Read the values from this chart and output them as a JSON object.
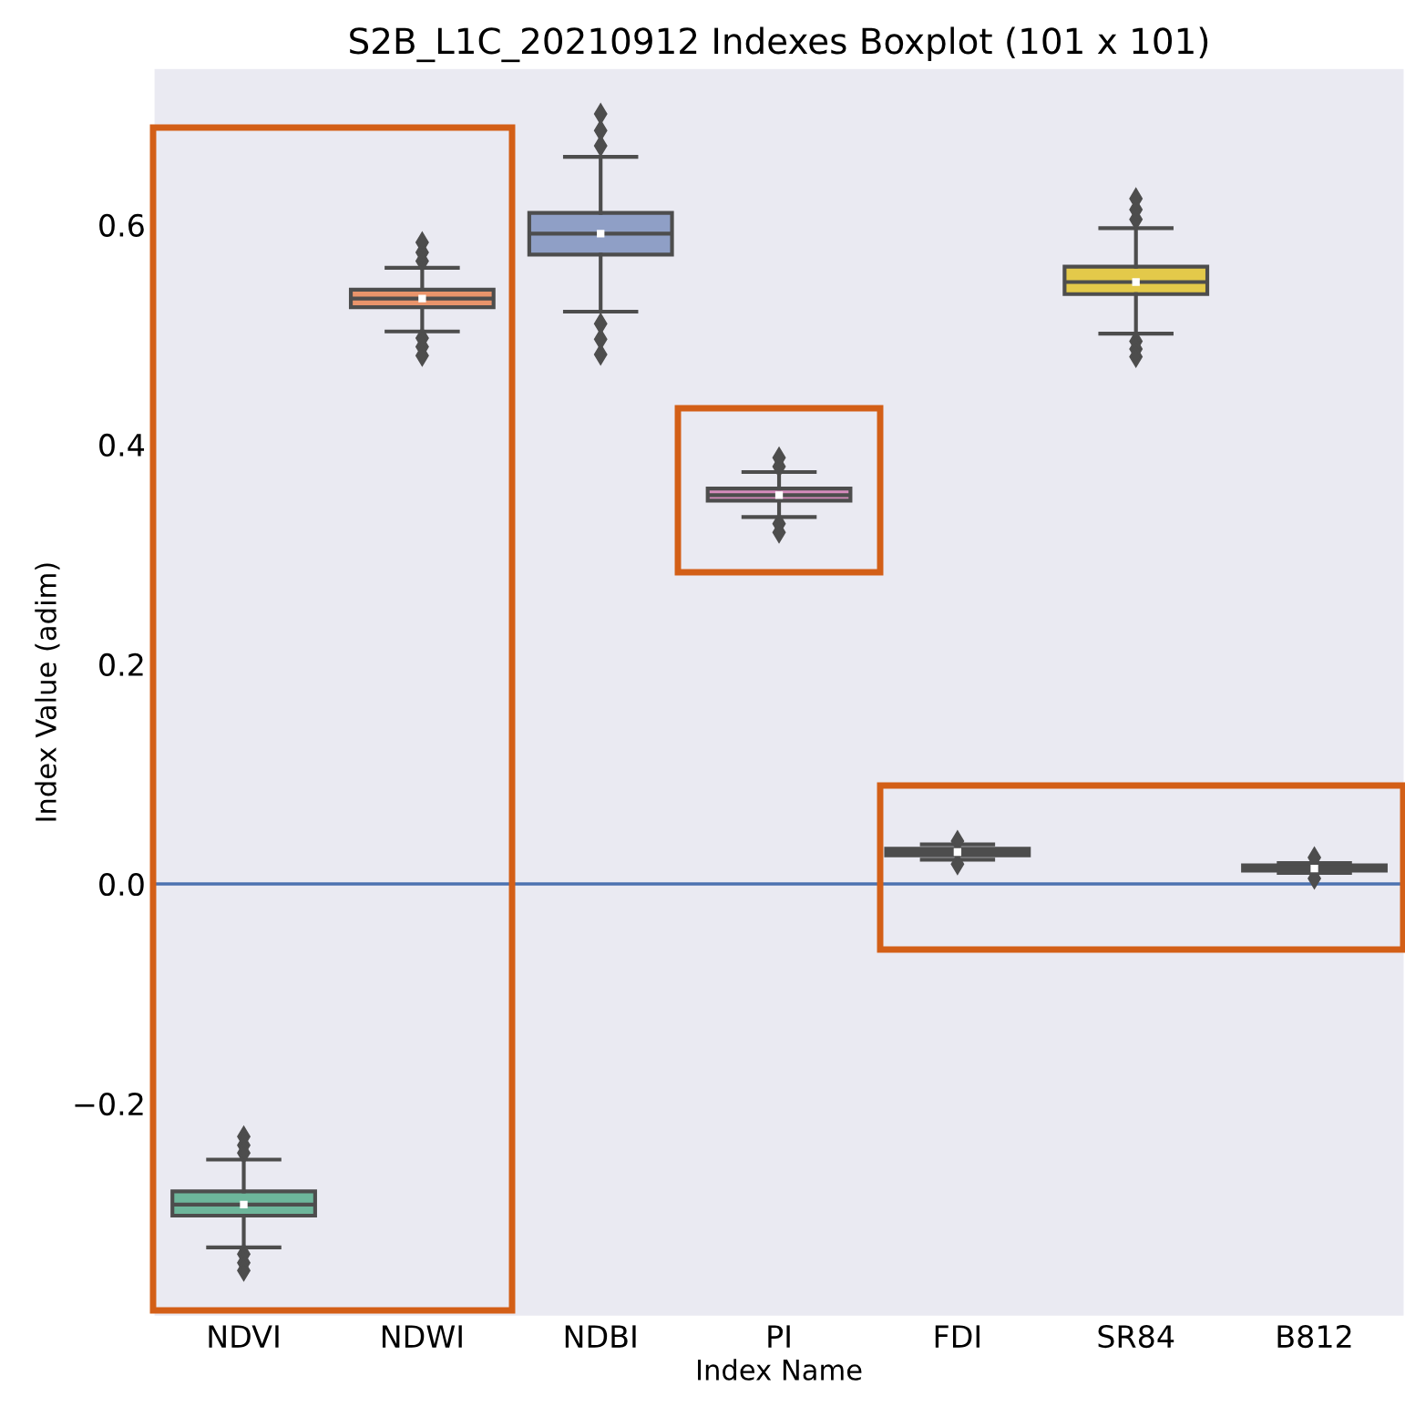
{
  "chart_data": {
    "type": "box",
    "title": "S2B_L1C_20210912 Indexes Boxplot (101 x 101)",
    "xlabel": "Index Name",
    "ylabel": "Index Value (adim)",
    "categories": [
      "NDVI",
      "NDWI",
      "NDBI",
      "PI",
      "FDI",
      "SR84",
      "B812"
    ],
    "colors": [
      "#6db69b",
      "#e9946b",
      "#8f9fc6",
      "#d68cbc",
      "#a7c865",
      "#e3c94a",
      "#d7c39d"
    ],
    "boxes": [
      {
        "low": -0.331,
        "q1": -0.302,
        "median": -0.292,
        "q3": -0.28,
        "high": -0.251,
        "mean": -0.292,
        "outliers": [
          -0.23,
          -0.238,
          -0.245,
          -0.337,
          -0.345,
          -0.352
        ]
      },
      {
        "low": 0.503,
        "q1": 0.525,
        "median": 0.533,
        "q3": 0.541,
        "high": 0.561,
        "mean": 0.533,
        "outliers": [
          0.567,
          0.575,
          0.584,
          0.497,
          0.489,
          0.481
        ]
      },
      {
        "low": 0.521,
        "q1": 0.573,
        "median": 0.592,
        "q3": 0.611,
        "high": 0.662,
        "mean": 0.592,
        "outliers": [
          0.672,
          0.686,
          0.701,
          0.51,
          0.496,
          0.482
        ]
      },
      {
        "low": 0.334,
        "q1": 0.349,
        "median": 0.354,
        "q3": 0.36,
        "high": 0.375,
        "mean": 0.354,
        "outliers": [
          0.38,
          0.388,
          0.328,
          0.32
        ]
      },
      {
        "low": 0.022,
        "q1": 0.026,
        "median": 0.029,
        "q3": 0.032,
        "high": 0.036,
        "mean": 0.029,
        "outliers": [
          0.039,
          0.018
        ]
      },
      {
        "low": 0.501,
        "q1": 0.537,
        "median": 0.548,
        "q3": 0.562,
        "high": 0.597,
        "mean": 0.548,
        "outliers": [
          0.605,
          0.614,
          0.624,
          0.494,
          0.487,
          0.48
        ]
      },
      {
        "low": 0.01,
        "q1": 0.012,
        "median": 0.014,
        "q3": 0.017,
        "high": 0.019,
        "mean": 0.014,
        "outliers": [
          0.024,
          0.005
        ]
      }
    ],
    "ylim": [
      -0.393,
      0.742
    ],
    "yticks": [
      {
        "value": -0.2,
        "label": "−0.2"
      },
      {
        "value": 0,
        "label": "0.0"
      },
      0.2,
      0.4,
      0.6
    ],
    "ref_lines": [
      {
        "axis": "y",
        "value": 0,
        "color": "#4c72b0"
      }
    ],
    "grid": false
  }
}
